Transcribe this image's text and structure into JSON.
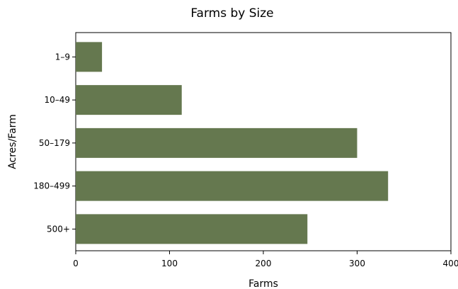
{
  "chart_data": {
    "type": "bar",
    "orientation": "horizontal",
    "title": "Farms by Size",
    "xlabel": "Farms",
    "ylabel": "Acres/Farm",
    "categories": [
      "1–9",
      "10–49",
      "50–179",
      "180–499",
      "500+"
    ],
    "values": [
      28,
      113,
      300,
      333,
      247
    ],
    "xlim": [
      0,
      400
    ],
    "xticks": [
      0,
      100,
      200,
      300,
      400
    ],
    "grid": false,
    "bar_color": "#65784f"
  }
}
